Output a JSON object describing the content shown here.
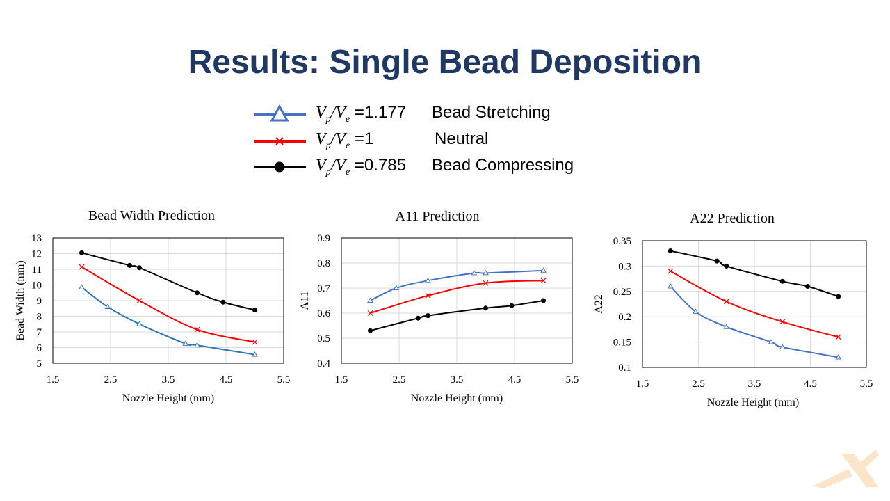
{
  "slide": {
    "title": "Results: Single Bead Deposition"
  },
  "legend": [
    {
      "ratio_prefix": "V",
      "ratio_sub1": "p",
      "ratio_mid": "/V",
      "ratio_sub2": "e",
      "value": " =1.177",
      "description": "Bead Stretching",
      "color": "#4472c4",
      "marker": "triangle-icon"
    },
    {
      "ratio_prefix": "V",
      "ratio_sub1": "p",
      "ratio_mid": "/V",
      "ratio_sub2": "e",
      "value": " =1",
      "description": "Neutral",
      "color": "#ff0000",
      "marker": "cross-icon"
    },
    {
      "ratio_prefix": "V",
      "ratio_sub1": "p",
      "ratio_mid": "/V",
      "ratio_sub2": "e",
      "value": " =0.785",
      "description": "Bead Compressing",
      "color": "#000000",
      "marker": "dot-icon"
    }
  ],
  "chart_data": [
    {
      "type": "line",
      "title": "Bead Width Prediction",
      "xlabel": "Nozzle Height (mm)",
      "ylabel": "Bead Width (mm)",
      "xlim": [
        1.5,
        5.5
      ],
      "ylim": [
        5,
        13
      ],
      "xticks": [
        1.5,
        2.5,
        3.5,
        4.5,
        5.5
      ],
      "yticks": [
        5,
        6,
        7,
        8,
        9,
        10,
        11,
        12,
        13
      ],
      "ytick_labels": [
        "5",
        "6",
        "7",
        "8",
        "9",
        "10",
        "11",
        "12",
        "13"
      ],
      "xtick_labels": [
        "1.5",
        "2.5",
        "3.5",
        "4.5",
        "5.5"
      ],
      "grid": true,
      "series": [
        {
          "color": "#2e75b6",
          "marker": "triangle",
          "x": [
            2,
            2.45,
            3,
            3.8,
            4,
            5
          ],
          "y": [
            9.85,
            8.6,
            7.5,
            6.25,
            6.15,
            5.55
          ]
        },
        {
          "color": "#ff0000",
          "marker": "cross",
          "x": [
            2,
            3,
            4,
            5
          ],
          "y": [
            11.15,
            9,
            7.15,
            6.35
          ]
        },
        {
          "color": "#000000",
          "marker": "dot",
          "x": [
            2,
            2.83,
            3,
            4,
            4.45,
            5
          ],
          "y": [
            12.05,
            11.25,
            11.1,
            9.5,
            8.9,
            8.4
          ]
        }
      ]
    },
    {
      "type": "line",
      "title": "A11 Prediction",
      "xlabel": "Nozzle Height (mm)",
      "ylabel": "A11",
      "xlim": [
        1.5,
        5.5
      ],
      "ylim": [
        0.4,
        0.9
      ],
      "xticks": [
        1.5,
        2.5,
        3.5,
        4.5,
        5.5
      ],
      "yticks": [
        0.4,
        0.5,
        0.6,
        0.7,
        0.8,
        0.9
      ],
      "ytick_labels": [
        "0.4",
        "0.5",
        "0.6",
        "0.7",
        "0.8",
        "0.9"
      ],
      "xtick_labels": [
        "1.5",
        "2.5",
        "3.5",
        "4.5",
        "5.5"
      ],
      "grid": true,
      "series": [
        {
          "color": "#4472c4",
          "marker": "triangle",
          "x": [
            2,
            2.45,
            3,
            3.8,
            4,
            5
          ],
          "y": [
            0.65,
            0.7,
            0.73,
            0.76,
            0.76,
            0.77
          ]
        },
        {
          "color": "#ff0000",
          "marker": "cross",
          "x": [
            2,
            3,
            4,
            5
          ],
          "y": [
            0.6,
            0.67,
            0.72,
            0.73
          ]
        },
        {
          "color": "#000000",
          "marker": "dot",
          "x": [
            2,
            2.83,
            3,
            4,
            4.45,
            5
          ],
          "y": [
            0.53,
            0.58,
            0.59,
            0.62,
            0.63,
            0.65
          ]
        }
      ]
    },
    {
      "type": "line",
      "title": "A22 Prediction",
      "xlabel": "Nozzle Height (mm)",
      "ylabel": "A22",
      "xlim": [
        1.5,
        5.5
      ],
      "ylim": [
        0.1,
        0.35
      ],
      "xticks": [
        1.5,
        2.5,
        3.5,
        4.5,
        5.5
      ],
      "yticks": [
        0.1,
        0.15,
        0.2,
        0.25,
        0.3,
        0.35
      ],
      "ytick_labels": [
        "0.1",
        "0.15",
        "0.2",
        "0.25",
        "0.3",
        "0.35"
      ],
      "xtick_labels": [
        "1.5",
        "2.5",
        "3.5",
        "4.5",
        "5.5"
      ],
      "grid": true,
      "series": [
        {
          "color": "#4472c4",
          "marker": "triangle",
          "x": [
            2,
            2.45,
            3,
            3.8,
            4,
            5
          ],
          "y": [
            0.26,
            0.21,
            0.18,
            0.15,
            0.14,
            0.12
          ]
        },
        {
          "color": "#ff0000",
          "marker": "cross",
          "x": [
            2,
            3,
            4,
            5
          ],
          "y": [
            0.29,
            0.23,
            0.19,
            0.16
          ]
        },
        {
          "color": "#000000",
          "marker": "dot",
          "x": [
            2,
            2.83,
            3,
            4,
            4.45,
            5
          ],
          "y": [
            0.33,
            0.31,
            0.3,
            0.27,
            0.26,
            0.24
          ]
        }
      ]
    }
  ],
  "decor": {
    "corner_mark_color": "#fbe5c8",
    "corner_mark": "x-logo-icon"
  }
}
